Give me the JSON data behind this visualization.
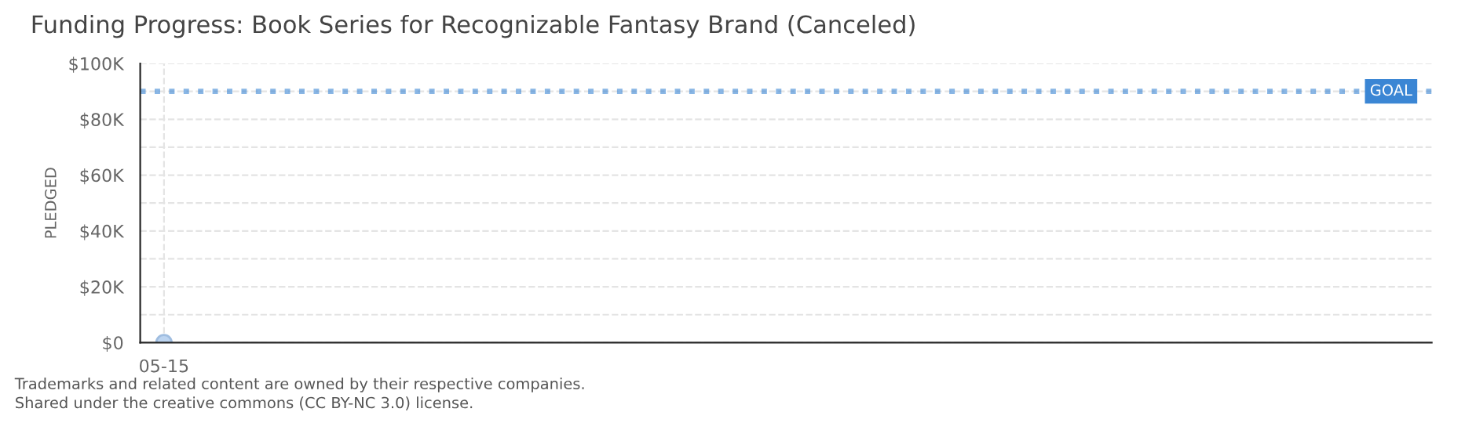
{
  "chart_data": {
    "type": "line",
    "title": "Funding Progress: Book Series for Recognizable Fantasy Brand (Canceled)",
    "ylabel": "PLEDGED",
    "categories": [
      "05-15"
    ],
    "series": [
      {
        "color": "#bcd4f0",
        "values": [
          0
        ]
      }
    ],
    "marker": "circle",
    "ylim": [
      0,
      100000
    ],
    "yticks": [
      {
        "value": 0,
        "label": "$0"
      },
      {
        "value": 10000,
        "label": null
      },
      {
        "value": 20000,
        "label": "$20K"
      },
      {
        "value": 30000,
        "label": null
      },
      {
        "value": 40000,
        "label": "$40K"
      },
      {
        "value": 50000,
        "label": null
      },
      {
        "value": 60000,
        "label": "$60K"
      },
      {
        "value": 70000,
        "label": null
      },
      {
        "value": 80000,
        "label": "$80K"
      },
      {
        "value": 90000,
        "label": null
      },
      {
        "value": 100000,
        "label": "$100K"
      }
    ],
    "ref_lines": [
      {
        "axis": "y",
        "value": 90000,
        "label": "GOAL",
        "color": "#3b86d4",
        "line_style": "dotted"
      }
    ],
    "grid": true,
    "annotations": [
      "Trademarks and related content are owned by their respective companies.",
      "Shared under the creative commons (CC BY-NC 3.0) license."
    ]
  }
}
